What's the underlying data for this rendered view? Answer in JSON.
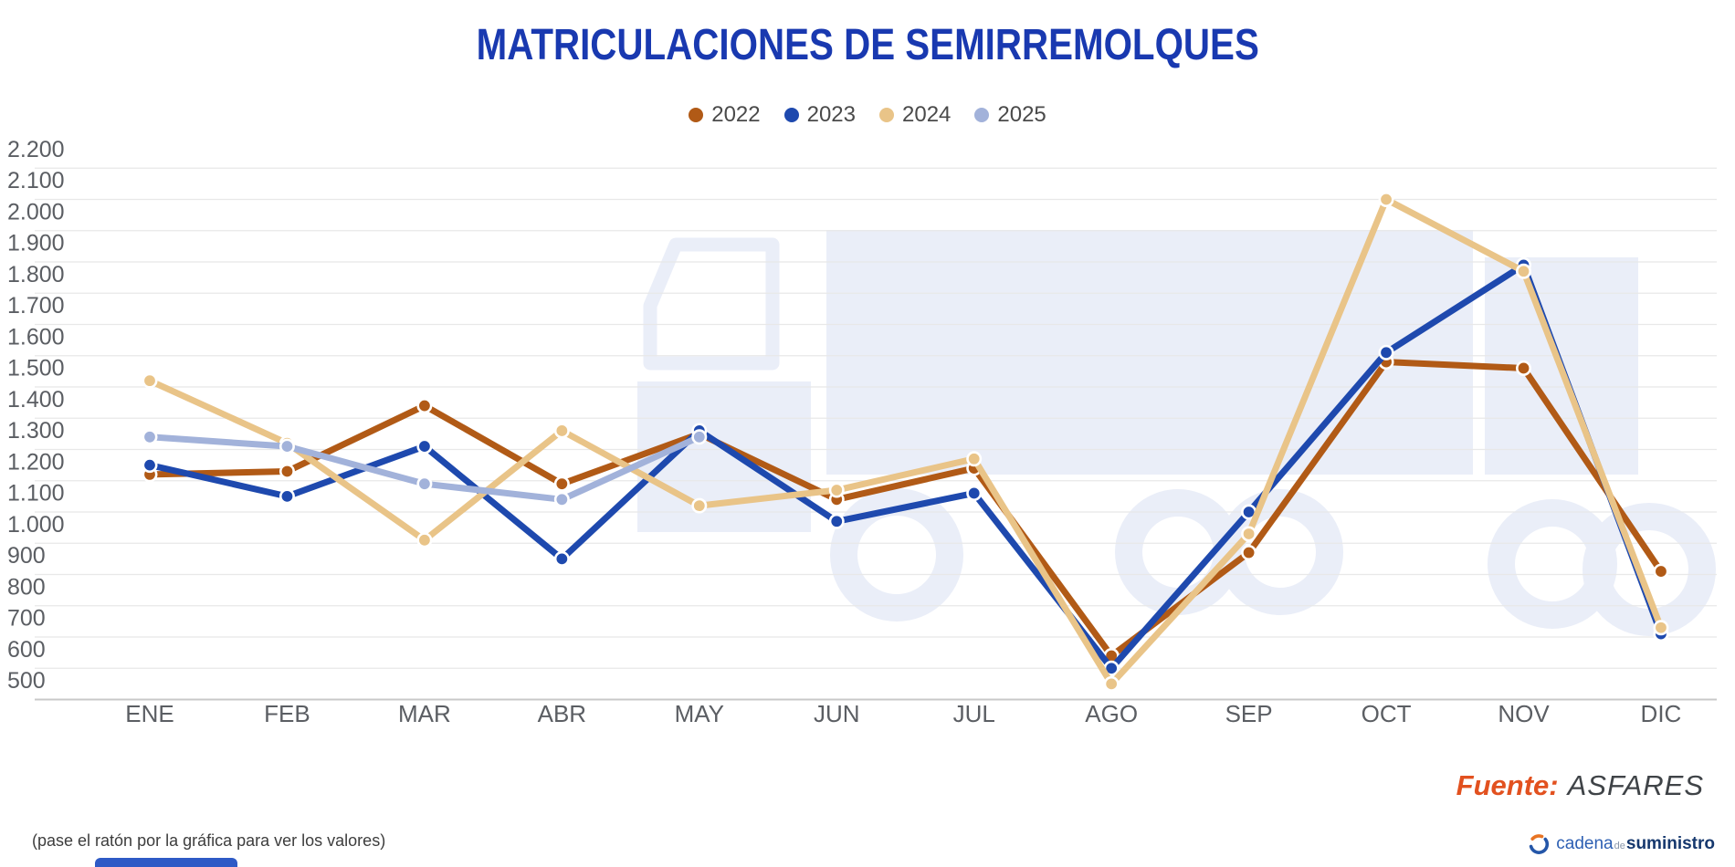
{
  "title": "MATRICULACIONES DE SEMIRREMOLQUES",
  "chart_data": {
    "type": "line",
    "title": "MATRICULACIONES DE SEMIRREMOLQUES",
    "categories": [
      "ENE",
      "FEB",
      "MAR",
      "ABR",
      "MAY",
      "JUN",
      "JUL",
      "AGO",
      "SEP",
      "OCT",
      "NOV",
      "DIC"
    ],
    "series": [
      {
        "name": "2022",
        "color": "#b15a16",
        "values": [
          1220,
          1230,
          1440,
          1190,
          1350,
          1140,
          1240,
          640,
          970,
          1580,
          1560,
          910
        ]
      },
      {
        "name": "2023",
        "color": "#1e49ae",
        "values": [
          1250,
          1150,
          1310,
          950,
          1360,
          1070,
          1160,
          600,
          1100,
          1610,
          1890,
          710
        ]
      },
      {
        "name": "2024",
        "color": "#e9c488",
        "values": [
          1520,
          1320,
          1010,
          1360,
          1120,
          1170,
          1270,
          550,
          1030,
          2100,
          1870,
          730
        ]
      },
      {
        "name": "2025",
        "color": "#a2b2da",
        "values": [
          1340,
          1310,
          1190,
          1140,
          1340,
          null,
          null,
          null,
          null,
          null,
          null,
          null
        ]
      }
    ],
    "ylim": [
      500,
      2200
    ],
    "ytick_step": 100,
    "grid": true,
    "legend_position": "top",
    "xlabel": "",
    "ylabel": ""
  },
  "footer": {
    "source_label": "Fuente:",
    "source_value": "ASFARES",
    "hint": "(pase el ratón por la gráfica para ver los valores)"
  },
  "logo": {
    "part1": "cadena",
    "part2": "de",
    "part3": "suministro"
  }
}
